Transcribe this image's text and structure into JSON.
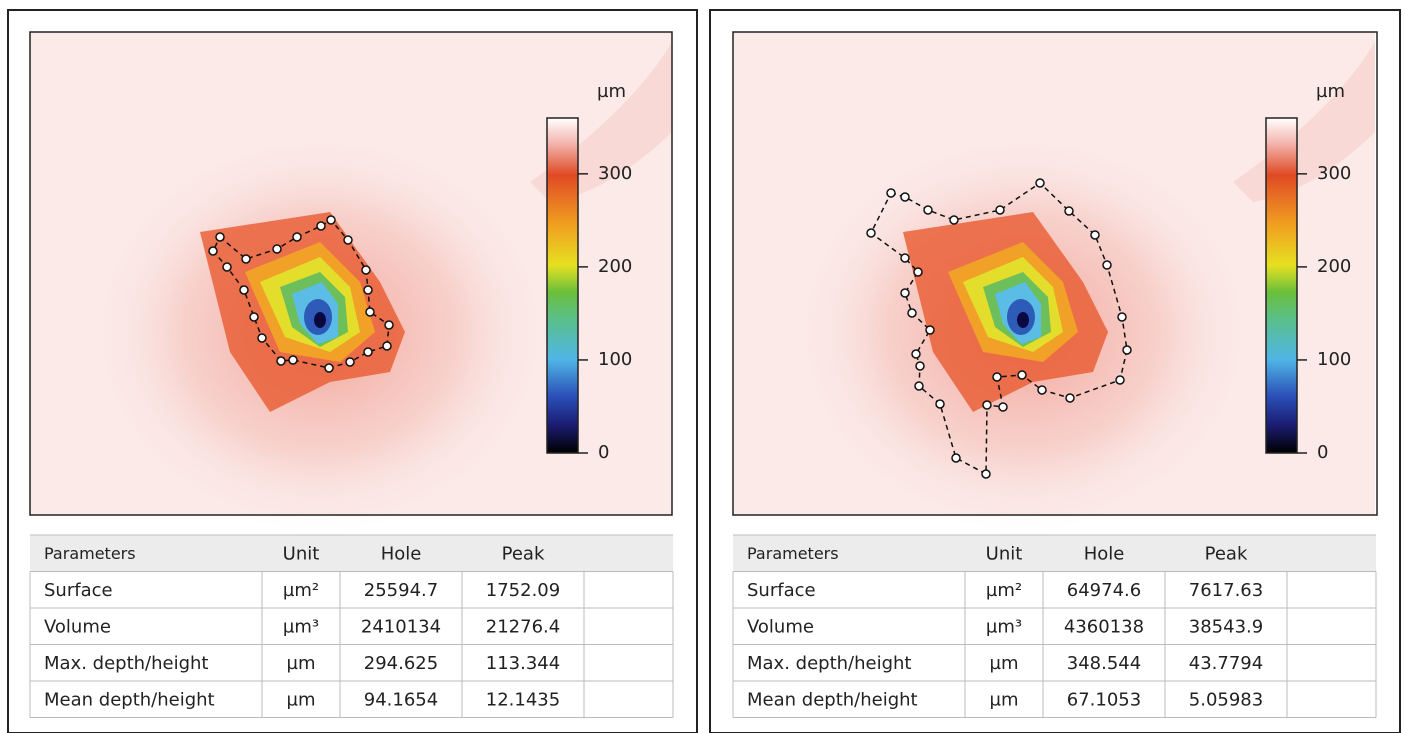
{
  "panels": [
    {
      "colorbar": {
        "unit": "µm",
        "range": [
          0,
          360
        ],
        "ticks": [
          0,
          100,
          200,
          300
        ]
      },
      "table": {
        "header": [
          "Parameters",
          "Unit",
          "Hole",
          "Peak"
        ],
        "rows": [
          [
            "Surface",
            "µm²",
            "25594.7",
            "1752.09"
          ],
          [
            "Volume",
            "µm³",
            "2410134",
            "21276.4"
          ],
          [
            "Max. depth/height",
            "µm",
            "294.625",
            "113.344"
          ],
          [
            "Mean depth/height",
            "µm",
            "94.1654",
            "12.1435"
          ]
        ]
      }
    },
    {
      "colorbar": {
        "unit": "µm",
        "range": [
          0,
          360
        ],
        "ticks": [
          0,
          100,
          200,
          300
        ]
      },
      "table": {
        "header": [
          "Parameters",
          "Unit",
          "Hole",
          "Peak"
        ],
        "rows": [
          [
            "Surface",
            "µm²",
            "64974.6",
            "7617.63"
          ],
          [
            "Volume",
            "µm³",
            "4360138",
            "38543.9"
          ],
          [
            "Max. depth/height",
            "µm",
            "348.544",
            "43.7794"
          ],
          [
            "Mean depth/height",
            "µm",
            "67.1053",
            "5.05983"
          ]
        ]
      }
    }
  ]
}
